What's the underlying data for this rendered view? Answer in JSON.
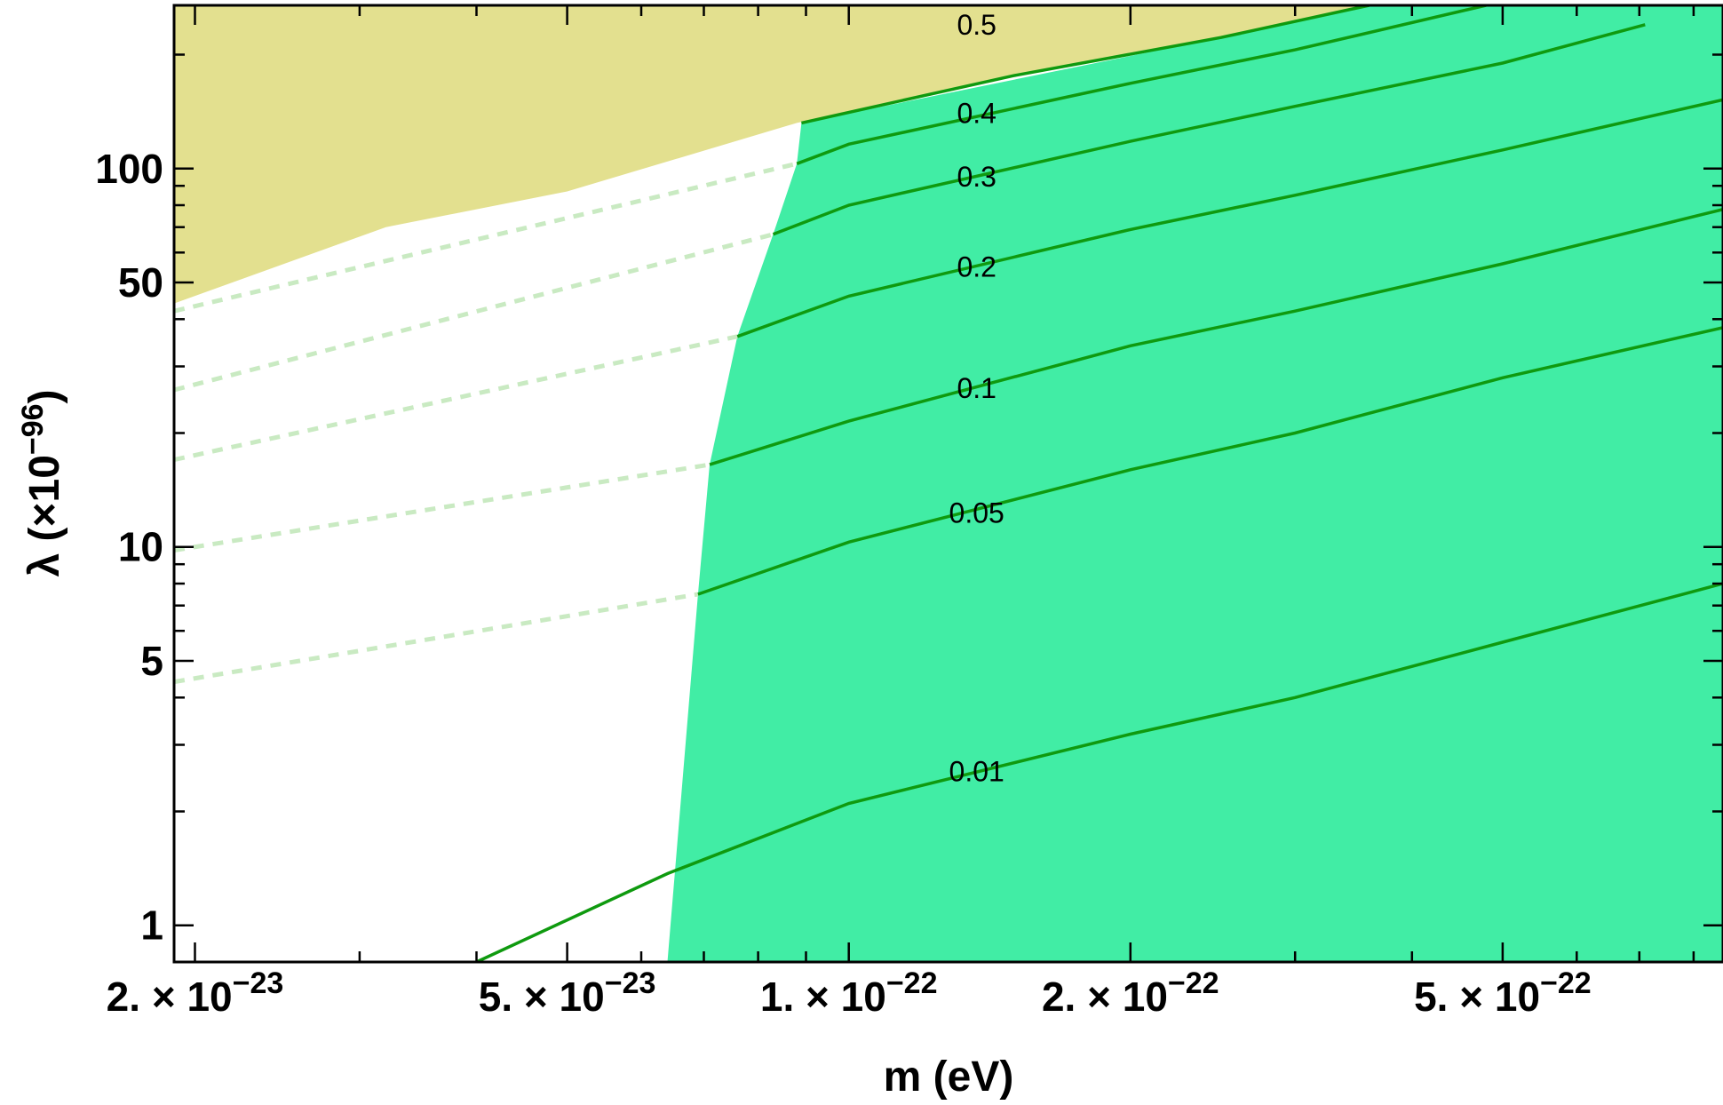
{
  "chart_data": {
    "type": "contour",
    "xlabel": "m (eV)",
    "ylabel_base": "λ (×10",
    "ylabel_exp": "−96",
    "ylabel_close": ")",
    "x_scale": "log",
    "y_scale": "log",
    "xlim": [
      1.9e-23,
      8.6e-22
    ],
    "ylim": [
      0.8,
      270
    ],
    "x_ticks": [
      {
        "value": 2e-23,
        "mant": "2.",
        "exp": "−23"
      },
      {
        "value": 5e-23,
        "mant": "5.",
        "exp": "−23"
      },
      {
        "value": 1e-22,
        "mant": "1.",
        "exp": "−22"
      },
      {
        "value": 2e-22,
        "mant": "2.",
        "exp": "−22"
      },
      {
        "value": 5e-22,
        "mant": "5.",
        "exp": "−22"
      }
    ],
    "x_minor_ticks": [
      3e-23,
      4e-23,
      6e-23,
      7e-23,
      8e-23,
      9e-23,
      3e-22,
      4e-22,
      6e-22,
      7e-22,
      8e-22
    ],
    "y_ticks": [
      {
        "value": 1,
        "label": "1"
      },
      {
        "value": 5,
        "label": "5"
      },
      {
        "value": 10,
        "label": "10"
      },
      {
        "value": 50,
        "label": "50"
      },
      {
        "value": 100,
        "label": "100"
      }
    ],
    "y_minor_ticks": [
      2,
      3,
      4,
      6,
      7,
      8,
      9,
      20,
      30,
      40,
      60,
      70,
      80,
      90,
      200
    ],
    "colors": {
      "excluded_region": "#e3e08f",
      "allowed_region": "#41eda5",
      "contour_solid": "#0f9a0f",
      "contour_dashed": "#c9eac2"
    },
    "excluded_boundary": [
      [
        1.9e-23,
        44
      ],
      [
        3.2e-23,
        70
      ],
      [
        5e-23,
        87
      ],
      [
        8.8e-23,
        132
      ],
      [
        1.5e-22,
        176
      ],
      [
        2.5e-22,
        222
      ],
      [
        3.6e-22,
        270
      ]
    ],
    "allowed_left_boundary": [
      [
        6.4e-23,
        0.8
      ],
      [
        6.9e-23,
        7.5
      ],
      [
        7.1e-23,
        16.5
      ],
      [
        7.6e-23,
        36
      ],
      [
        8.3e-23,
        67
      ],
      [
        8.8e-23,
        103
      ],
      [
        8.9e-23,
        132
      ]
    ],
    "contours": [
      {
        "label": "0.01",
        "points": [
          [
            4e-23,
            0.8
          ],
          [
            6.4e-23,
            1.37
          ],
          [
            1e-22,
            2.1
          ],
          [
            2e-22,
            3.2
          ],
          [
            3e-22,
            4
          ],
          [
            5e-22,
            5.6
          ],
          [
            8.6e-22,
            8
          ]
        ],
        "label_at": [
          1.37e-22,
          2.55
        ]
      },
      {
        "label": "0.05",
        "points": [
          [
            1.9e-23,
            4.4
          ],
          [
            6.9e-23,
            7.5
          ],
          [
            1e-22,
            10.3
          ],
          [
            2e-22,
            16
          ],
          [
            3e-22,
            20
          ],
          [
            5e-22,
            28
          ],
          [
            8.6e-22,
            38
          ]
        ],
        "label_at": [
          1.37e-22,
          12.3
        ]
      },
      {
        "label": "0.1",
        "points": [
          [
            1.9e-23,
            9.8
          ],
          [
            7.1e-23,
            16.5
          ],
          [
            1e-22,
            21.5
          ],
          [
            2e-22,
            34
          ],
          [
            3e-22,
            42
          ],
          [
            5e-22,
            56
          ],
          [
            8.6e-22,
            78
          ]
        ],
        "label_at": [
          1.37e-22,
          26.3
        ]
      },
      {
        "label": "0.2",
        "points": [
          [
            1.9e-23,
            17
          ],
          [
            7.6e-23,
            36
          ],
          [
            1e-22,
            46
          ],
          [
            2e-22,
            69
          ],
          [
            3e-22,
            85
          ],
          [
            5e-22,
            112
          ],
          [
            8.6e-22,
            152
          ]
        ],
        "label_at": [
          1.37e-22,
          55
        ]
      },
      {
        "label": "0.3",
        "points": [
          [
            1.9e-23,
            26
          ],
          [
            8.3e-23,
            67
          ],
          [
            1e-22,
            80
          ],
          [
            2e-22,
            118
          ],
          [
            3e-22,
            146
          ],
          [
            5e-22,
            190
          ],
          [
            7.1e-22,
            240
          ]
        ],
        "label_at": [
          1.37e-22,
          95
        ]
      },
      {
        "label": "0.4",
        "points": [
          [
            1.9e-23,
            42
          ],
          [
            8.8e-23,
            103
          ],
          [
            1e-22,
            116
          ],
          [
            2e-22,
            168
          ],
          [
            3e-22,
            206
          ],
          [
            4.8e-22,
            270
          ]
        ],
        "label_at": [
          1.37e-22,
          140
        ]
      },
      {
        "label": "0.5",
        "points": [
          [
            8.9e-23,
            132
          ],
          [
            1.5e-22,
            176
          ],
          [
            2.5e-22,
            222
          ],
          [
            3.6e-22,
            270
          ]
        ],
        "label_at": [
          1.37e-22,
          240
        ]
      }
    ]
  }
}
